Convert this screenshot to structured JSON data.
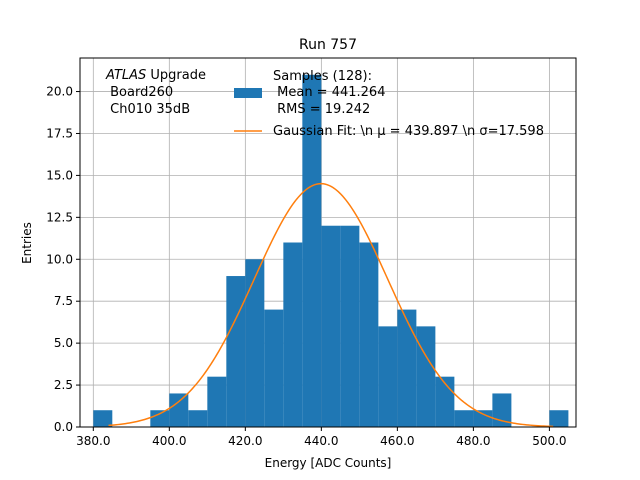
{
  "chart_data": {
    "type": "bar",
    "title": "Run 757",
    "xlabel": "Energy [ADC Counts]",
    "ylabel": "Entries",
    "xlim": [
      376.5,
      507.0
    ],
    "ylim": [
      0,
      22.0
    ],
    "grid": true,
    "xticks": [
      380,
      400,
      420,
      440,
      460,
      480,
      500
    ],
    "xtick_labels": [
      "380.0",
      "400.0",
      "420.0",
      "440.0",
      "460.0",
      "480.0",
      "500.0"
    ],
    "yticks": [
      0,
      2.5,
      5,
      7.5,
      10,
      12.5,
      15,
      17.5,
      20
    ],
    "ytick_labels": [
      "0.0",
      "2.5",
      "5.0",
      "7.5",
      "10.0",
      "12.5",
      "15.0",
      "17.5",
      "20.0"
    ],
    "bin_width": 5,
    "bin_edges": [
      380,
      385,
      390,
      395,
      400,
      405,
      410,
      415,
      420,
      425,
      430,
      435,
      440,
      445,
      450,
      455,
      460,
      465,
      470,
      475,
      480,
      485,
      490,
      495,
      500,
      505
    ],
    "values": [
      1,
      0,
      0,
      1,
      2,
      1,
      3,
      9,
      10,
      7,
      11,
      21,
      12,
      12,
      11,
      6,
      7,
      6,
      3,
      1,
      1,
      2,
      0,
      0,
      1
    ],
    "fit": {
      "mu": 439.897,
      "sigma": 17.598,
      "x_range": [
        384.0,
        501.0
      ]
    },
    "annotation": {
      "italic": "ATLAS",
      "rest": " Upgrade",
      "line2": " Board260",
      "line3": " Ch010 35dB"
    },
    "legend": {
      "position": "top-center",
      "hist_label": [
        "Samples (128):",
        " Mean = 441.264",
        " RMS = 19.242"
      ],
      "fit_label": "Gaussian Fit: \\n μ = 439.897 \\n σ=17.598"
    },
    "colors": {
      "bars": "#1f77b4",
      "fit": "#ff7f0e",
      "grid": "#b0b0b0"
    }
  }
}
